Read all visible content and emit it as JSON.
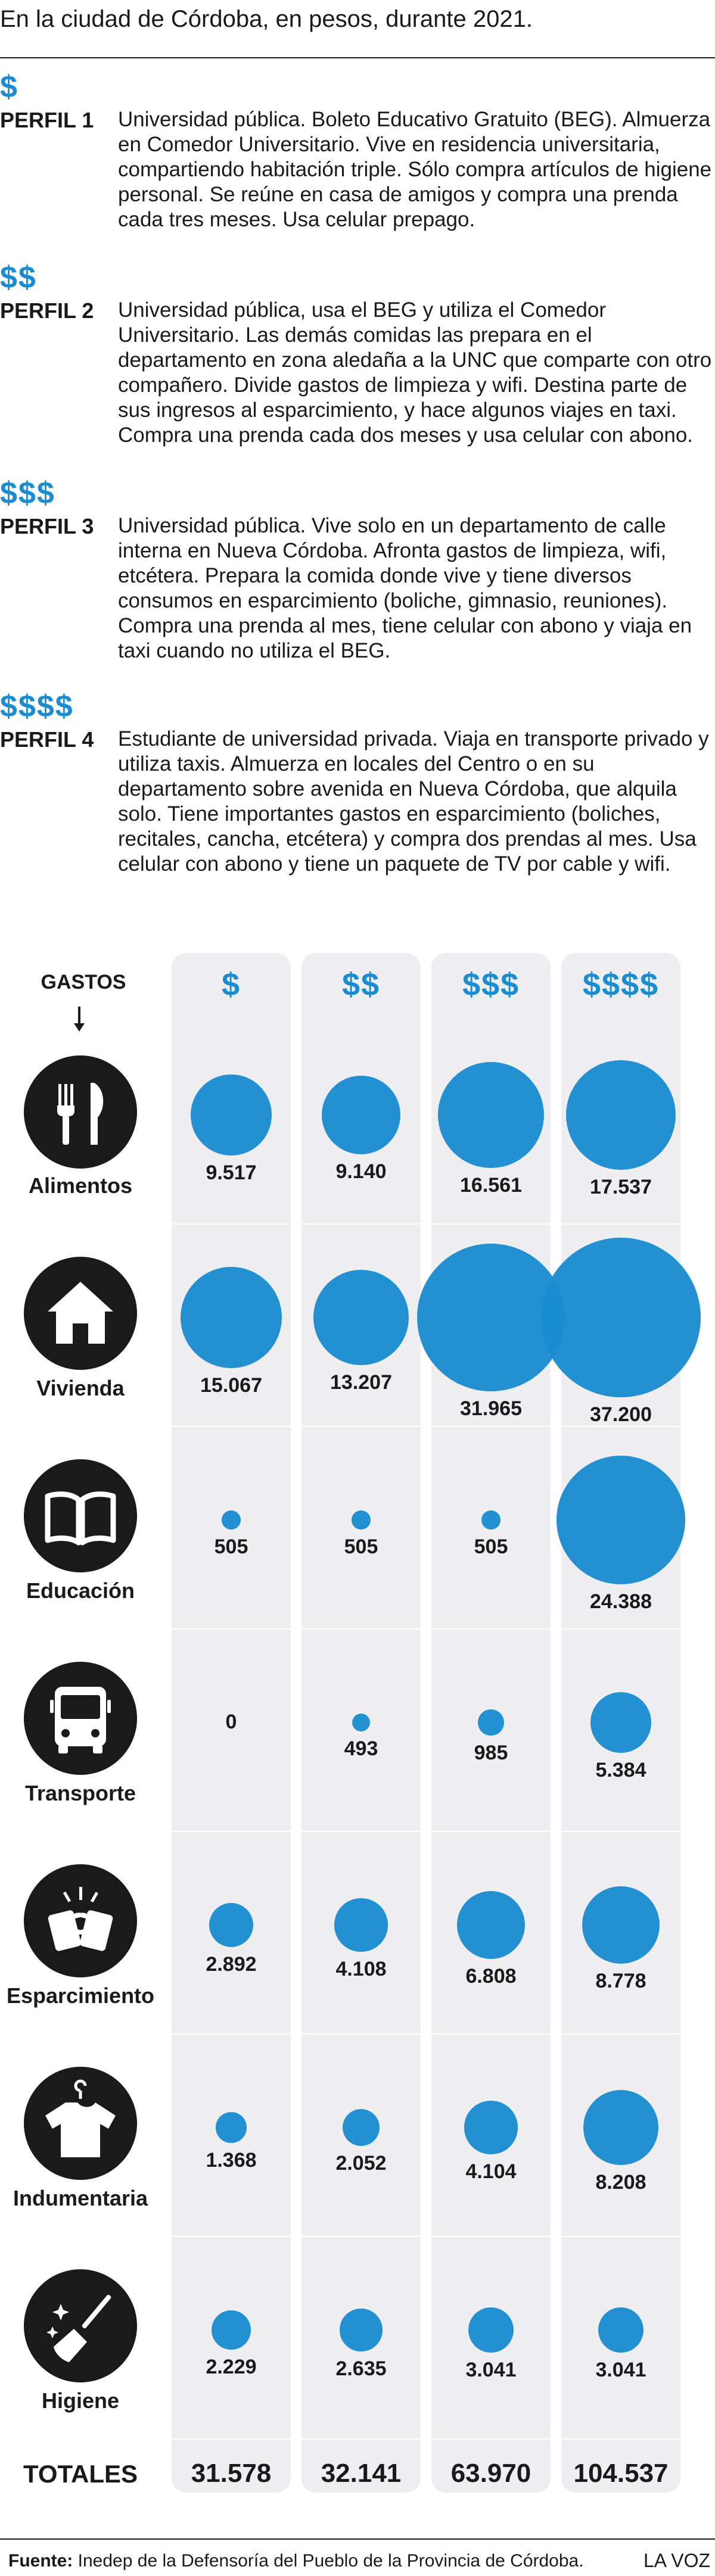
{
  "subtitle": "En la ciudad de Córdoba, en pesos, durante 2021.",
  "colors": {
    "accent": "#1a8ccf",
    "column_bg": "#eeeef0",
    "icon_bg": "#1a1a1a"
  },
  "profiles": [
    {
      "symbol": "$",
      "name": "PERFIL 1",
      "description": "Universidad pública. Boleto Educativo Gratuito (BEG). Almuerza en Comedor Universitario. Vive en residencia universitaria, compartiendo habitación triple. Sólo compra artículos de higiene personal. Se reúne en casa de amigos y compra una prenda cada tres meses. Usa celular prepago."
    },
    {
      "symbol": "$$",
      "name": "PERFIL 2",
      "description": "Universidad pública, usa el BEG y utiliza el Comedor Universitario. Las demás comidas las prepara en el departamento en zona aledaña a la UNC que comparte con otro compañero. Divide gastos de limpieza y wifi. Destina parte de sus ingresos al esparcimiento, y hace algunos viajes en taxi. Compra una prenda cada dos meses y usa celular con abono."
    },
    {
      "symbol": "$$$",
      "name": "PERFIL 3",
      "description": "Universidad pública. Vive solo en un departamento de calle interna en Nueva Córdoba. Afronta gastos de limpieza, wifi, etcétera. Prepara la comida donde vive y tiene diversos consumos en esparcimiento (boliche, gimnasio, reuniones). Compra una prenda al mes, tiene celular con abono y viaja en taxi cuando no utiliza el BEG."
    },
    {
      "symbol": "$$$$",
      "name": "PERFIL 4",
      "description": "Estudiante de universidad privada. Viaja en transporte privado y utiliza taxis. Almuerza en locales del Centro o en su departamento sobre avenida en Nueva Córdoba, que alquila solo. Tiene importantes gastos en esparcimiento (boliches, recitales, cancha, etcétera) y compra dos prendas al mes. Usa celular con abono y tiene un paquete de TV por cable y wifi."
    }
  ],
  "chart_data": {
    "type": "bubble-matrix",
    "row_header": "GASTOS",
    "columns": [
      "$",
      "$$",
      "$$$",
      "$$$$"
    ],
    "rows": [
      {
        "category": "Alimentos",
        "icon": "utensils-icon",
        "values": [
          9517,
          9140,
          16561,
          17537
        ],
        "labels": [
          "9.517",
          "9.140",
          "16.561",
          "17.537"
        ]
      },
      {
        "category": "Vivienda",
        "icon": "house-icon",
        "values": [
          15067,
          13207,
          31965,
          37200
        ],
        "labels": [
          "15.067",
          "13.207",
          "31.965",
          "37.200"
        ]
      },
      {
        "category": "Educación",
        "icon": "book-icon",
        "values": [
          505,
          505,
          505,
          24388
        ],
        "labels": [
          "505",
          "505",
          "505",
          "24.388"
        ]
      },
      {
        "category": "Transporte",
        "icon": "bus-icon",
        "values": [
          0,
          493,
          985,
          5384
        ],
        "labels": [
          "0",
          "493",
          "985",
          "5.384"
        ]
      },
      {
        "category": "Esparcimiento",
        "icon": "beer-mugs-icon",
        "values": [
          2892,
          4108,
          6808,
          8778
        ],
        "labels": [
          "2.892",
          "4.108",
          "6.808",
          "8.778"
        ]
      },
      {
        "category": "Indumentaria",
        "icon": "tshirt-icon",
        "values": [
          1368,
          2052,
          4104,
          8208
        ],
        "labels": [
          "1.368",
          "2.052",
          "4.104",
          "8.208"
        ]
      },
      {
        "category": "Higiene",
        "icon": "broom-icon",
        "values": [
          2229,
          2635,
          3041,
          3041
        ],
        "labels": [
          "2.229",
          "2.635",
          "3.041",
          "3.041"
        ]
      }
    ],
    "totals_label": "TOTALES",
    "totals": [
      "31.578",
      "32.141",
      "63.970",
      "104.537"
    ]
  },
  "source": {
    "label": "Fuente:",
    "text": " Inedep de la Defensoría del Pueblo de la Provincia de Córdoba."
  },
  "brand": "LA VOZ"
}
